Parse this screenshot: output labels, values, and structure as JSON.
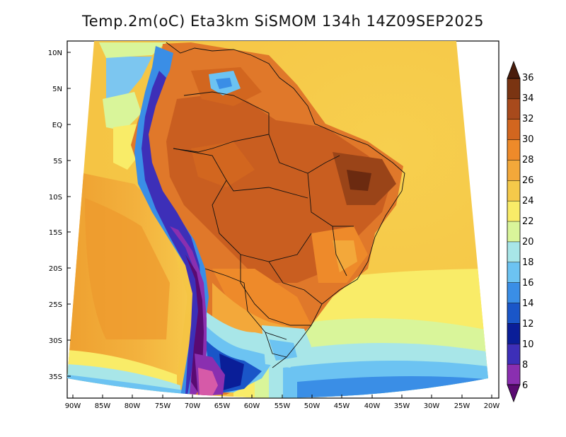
{
  "title": "Temp.2m(oC) Eta3km SiSMOM 134h 14Z09SEP2025",
  "map": {
    "variable": "2 m air temperature",
    "units": "oC",
    "projection": "lambert-conic",
    "latitude_labels": [
      "10N",
      "5N",
      "EQ",
      "5S",
      "10S",
      "15S",
      "20S",
      "25S",
      "30S",
      "35S"
    ],
    "longitude_labels": [
      "90W",
      "85W",
      "80W",
      "75W",
      "70W",
      "65W",
      "60W",
      "55W",
      "50W",
      "45W",
      "40W",
      "35W",
      "30W",
      "25W",
      "20W"
    ]
  },
  "colorbar": {
    "labels": [
      "36",
      "34",
      "32",
      "30",
      "28",
      "26",
      "24",
      "22",
      "20",
      "18",
      "16",
      "14",
      "12",
      "10",
      "8",
      "6"
    ],
    "colors": [
      "#4a1d0c",
      "#7a3412",
      "#a84a1c",
      "#d2661f",
      "#ee8a2a",
      "#f3a83a",
      "#f5c94a",
      "#f9ec68",
      "#d9f59a",
      "#a8e6e8",
      "#6cc3f2",
      "#3a8ee6",
      "#1a56c8",
      "#0a1e98",
      "#3d2fb8",
      "#8a2fb0",
      "#5a0a72"
    ]
  }
}
